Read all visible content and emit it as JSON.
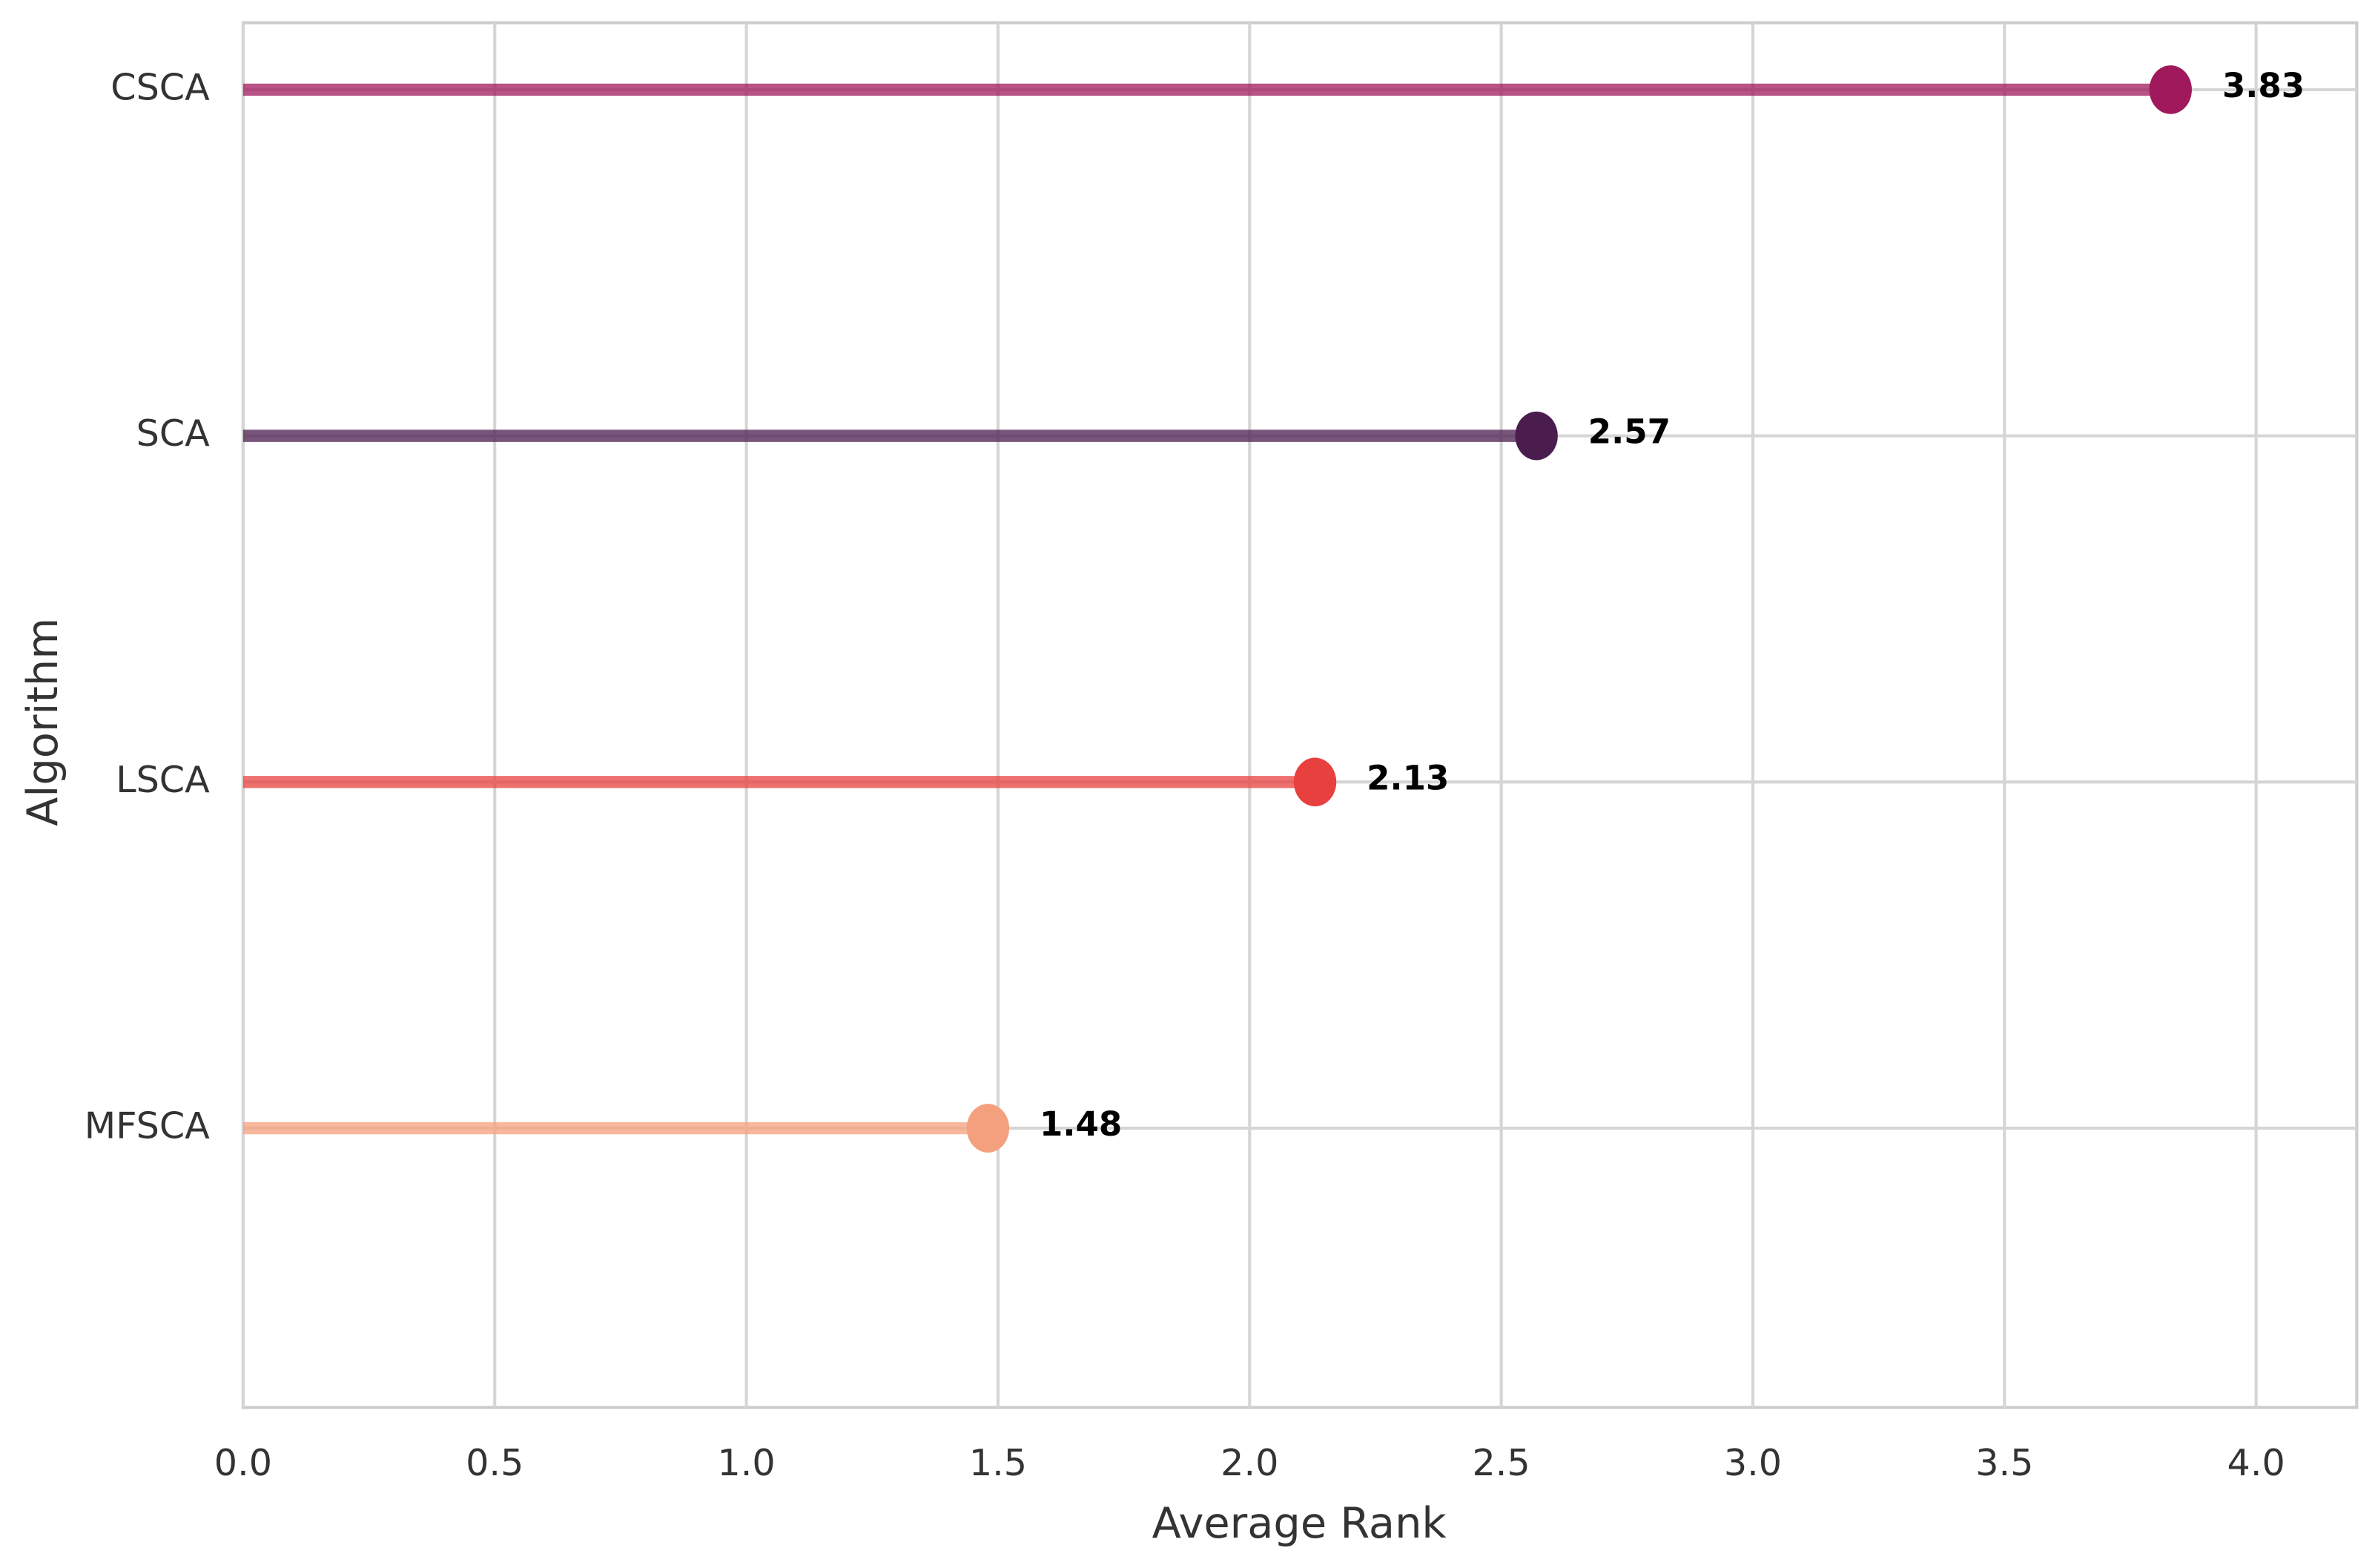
{
  "chart_data": {
    "type": "lollipop",
    "xlabel": "Average Rank",
    "ylabel": "Algorithm",
    "categories": [
      "CSCA",
      "SCA",
      "LSCA",
      "MFSCA"
    ],
    "values": [
      3.83,
      2.57,
      2.13,
      1.48
    ],
    "colors": [
      "#a0195c",
      "#4b1d4f",
      "#e8403f",
      "#f4a07e"
    ],
    "xlim": [
      0,
      4.2
    ],
    "xticks": [
      {
        "value": 0,
        "label": "0.0"
      },
      0.5,
      {
        "value": 1,
        "label": "1.0"
      },
      1.5,
      {
        "value": 2,
        "label": "2.0"
      },
      2.5,
      {
        "value": 3,
        "label": "3.0"
      },
      3.5,
      {
        "value": 4,
        "label": "4.0"
      }
    ],
    "grid": true
  }
}
